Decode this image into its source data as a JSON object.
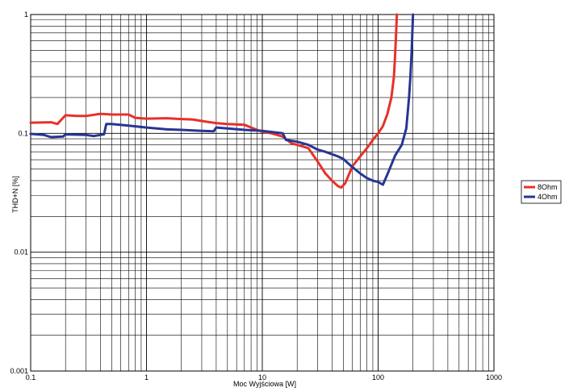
{
  "chart_data": {
    "type": "line",
    "title": "",
    "xlabel": "Moc Wyjściowa [W]",
    "ylabel": "THD+N [%]",
    "xscale": "log",
    "yscale": "log",
    "xlim": [
      0.1,
      1000
    ],
    "ylim": [
      0.001,
      1
    ],
    "x_ticks": [
      {
        "value": 0.1,
        "label": "0.1"
      },
      {
        "value": 1,
        "label": "1"
      },
      {
        "value": 10,
        "label": "10"
      },
      {
        "value": 100,
        "label": "100"
      },
      {
        "value": 1000,
        "label": "1000"
      }
    ],
    "y_ticks": [
      {
        "value": 1,
        "label": "1"
      },
      {
        "value": 0.1,
        "label": "0.1"
      },
      {
        "value": 0.01,
        "label": "0.01"
      },
      {
        "value": 0.001,
        "label": "0.001"
      }
    ],
    "grid": true,
    "legend_position": "right",
    "series": [
      {
        "name": "8Ohm",
        "color": "#e8302a",
        "points": [
          [
            0.1,
            0.123
          ],
          [
            0.15,
            0.124
          ],
          [
            0.17,
            0.12
          ],
          [
            0.2,
            0.142
          ],
          [
            0.25,
            0.14
          ],
          [
            0.3,
            0.14
          ],
          [
            0.4,
            0.146
          ],
          [
            0.5,
            0.144
          ],
          [
            0.7,
            0.144
          ],
          [
            0.8,
            0.135
          ],
          [
            1,
            0.133
          ],
          [
            1.5,
            0.134
          ],
          [
            2,
            0.132
          ],
          [
            2.5,
            0.131
          ],
          [
            3,
            0.127
          ],
          [
            4,
            0.122
          ],
          [
            5,
            0.12
          ],
          [
            6,
            0.119
          ],
          [
            7,
            0.118
          ],
          [
            8,
            0.112
          ],
          [
            10,
            0.103
          ],
          [
            12,
            0.1
          ],
          [
            15,
            0.094
          ],
          [
            18,
            0.082
          ],
          [
            20,
            0.08
          ],
          [
            25,
            0.075
          ],
          [
            30,
            0.058
          ],
          [
            35,
            0.046
          ],
          [
            40,
            0.04
          ],
          [
            45,
            0.036
          ],
          [
            48,
            0.035
          ],
          [
            52,
            0.038
          ],
          [
            60,
            0.053
          ],
          [
            70,
            0.064
          ],
          [
            80,
            0.075
          ],
          [
            90,
            0.088
          ],
          [
            100,
            0.1
          ],
          [
            110,
            0.115
          ],
          [
            120,
            0.145
          ],
          [
            130,
            0.2
          ],
          [
            137,
            0.3
          ],
          [
            140,
            0.45
          ],
          [
            143,
            0.7
          ],
          [
            145,
            1
          ]
        ]
      },
      {
        "name": "4Ohm",
        "color": "#283593",
        "points": [
          [
            0.1,
            0.099
          ],
          [
            0.13,
            0.097
          ],
          [
            0.15,
            0.093
          ],
          [
            0.19,
            0.094
          ],
          [
            0.2,
            0.098
          ],
          [
            0.3,
            0.097
          ],
          [
            0.35,
            0.095
          ],
          [
            0.4,
            0.097
          ],
          [
            0.43,
            0.098
          ],
          [
            0.45,
            0.12
          ],
          [
            0.5,
            0.12
          ],
          [
            0.7,
            0.116
          ],
          [
            1,
            0.112
          ],
          [
            1.5,
            0.108
          ],
          [
            2,
            0.107
          ],
          [
            3,
            0.105
          ],
          [
            3.8,
            0.104
          ],
          [
            4,
            0.112
          ],
          [
            5,
            0.11
          ],
          [
            7,
            0.107
          ],
          [
            10,
            0.105
          ],
          [
            15,
            0.1
          ],
          [
            16,
            0.088
          ],
          [
            20,
            0.085
          ],
          [
            25,
            0.08
          ],
          [
            30,
            0.073
          ],
          [
            35,
            0.07
          ],
          [
            45,
            0.064
          ],
          [
            50,
            0.061
          ],
          [
            55,
            0.056
          ],
          [
            60,
            0.052
          ],
          [
            70,
            0.046
          ],
          [
            80,
            0.042
          ],
          [
            90,
            0.04
          ],
          [
            100,
            0.039
          ],
          [
            110,
            0.037
          ],
          [
            120,
            0.045
          ],
          [
            140,
            0.065
          ],
          [
            160,
            0.08
          ],
          [
            175,
            0.11
          ],
          [
            185,
            0.2
          ],
          [
            190,
            0.3
          ],
          [
            195,
            0.5
          ],
          [
            200,
            1
          ]
        ]
      }
    ]
  }
}
